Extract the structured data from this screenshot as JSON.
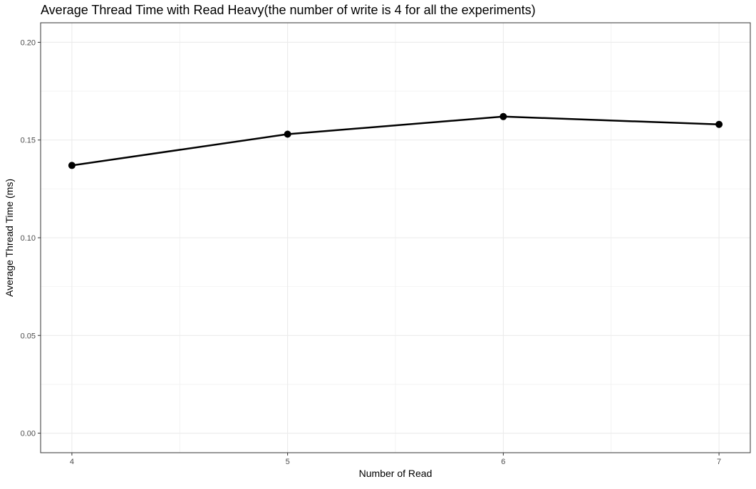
{
  "chart_data": {
    "type": "line",
    "title": "Average Thread Time with Read Heavy(the number of write is 4 for all the experiments)",
    "xlabel": "Number of Read",
    "ylabel": "Average Thread Time (ms)",
    "x": [
      4,
      5,
      6,
      7
    ],
    "y": [
      0.137,
      0.153,
      0.162,
      0.158
    ],
    "xlim": [
      3.855,
      7.145
    ],
    "ylim": [
      -0.01,
      0.21
    ],
    "x_ticks": [
      4,
      5,
      6,
      7
    ],
    "x_tick_labels": [
      "4",
      "5",
      "6",
      "7"
    ],
    "y_ticks": [
      0.0,
      0.05,
      0.1,
      0.15,
      0.2
    ],
    "y_tick_labels": [
      "0.00",
      "0.05",
      "0.10",
      "0.15",
      "0.20"
    ],
    "grid": true,
    "markers": true,
    "line_color": "#000000",
    "grid_color": "#ebebeb",
    "panel_border_color": "#333333",
    "tick_label_color": "#4d4d4d"
  }
}
